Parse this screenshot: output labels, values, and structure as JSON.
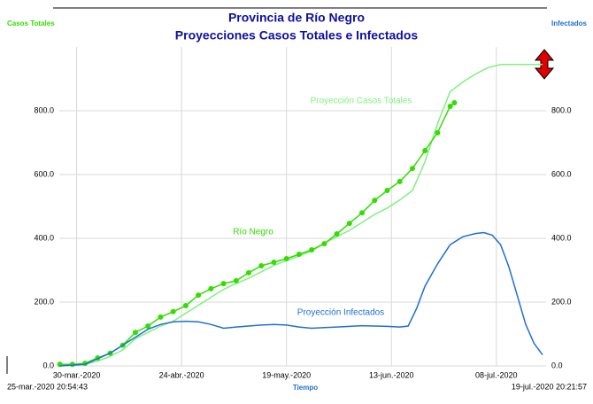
{
  "chart_data": {
    "type": "line",
    "title": "Provincia de Río Negro",
    "subtitle": "Proyecciones Casos Totales e Infectados",
    "ylabel": "Casos Totales",
    "y2label": "Infectados",
    "xlabel": "Tiempo",
    "xlim": [
      {
        "value": "2020-03-25T20:54:43",
        "label": "25-mar.-2020 20:54:43"
      },
      {
        "value": "2020-07-19T20:21:57",
        "label": "19-jul.-2020 20:21:57"
      }
    ],
    "xticks": [
      {
        "value": "2020-03-30",
        "label": "30-mar.-2020"
      },
      {
        "value": "2020-04-24",
        "label": "24-abr.-2020"
      },
      {
        "value": "2020-05-19",
        "label": "19-may.-2020"
      },
      {
        "value": "2020-06-13",
        "label": "13-jun.-2020"
      },
      {
        "value": "2020-07-08",
        "label": "08-jul.-2020"
      }
    ],
    "ylim": [
      0,
      1000
    ],
    "yticks": [
      {
        "value": 0,
        "label": "0.0"
      },
      {
        "value": 200,
        "label": "200.0"
      },
      {
        "value": 400,
        "label": "400.0"
      },
      {
        "value": 600,
        "label": "600.0"
      },
      {
        "value": 800,
        "label": "800.0"
      }
    ],
    "y2lim": [
      0,
      1000
    ],
    "y2ticks": [
      {
        "value": 0,
        "label": "0.0"
      },
      {
        "value": 200,
        "label": "200.0"
      },
      {
        "value": 400,
        "label": "400.0"
      },
      {
        "value": 600,
        "label": "600.0"
      },
      {
        "value": 800,
        "label": "800.0"
      }
    ],
    "grid": true,
    "series": [
      {
        "name": "Proyección Casos Totales",
        "color": "#80f080",
        "x": [
          "2020-03-26",
          "2020-03-29",
          "2020-04-01",
          "2020-04-04",
          "2020-04-07",
          "2020-04-10",
          "2020-04-13",
          "2020-04-16",
          "2020-04-19",
          "2020-04-22",
          "2020-04-25",
          "2020-04-28",
          "2020-05-01",
          "2020-05-04",
          "2020-05-07",
          "2020-05-10",
          "2020-05-13",
          "2020-05-16",
          "2020-05-19",
          "2020-05-22",
          "2020-05-25",
          "2020-05-28",
          "2020-05-31",
          "2020-06-03",
          "2020-06-06",
          "2020-06-09",
          "2020-06-12",
          "2020-06-15",
          "2020-06-18",
          "2020-06-21",
          "2020-06-24",
          "2020-06-27",
          "2020-06-30",
          "2020-07-03",
          "2020-07-06",
          "2020-07-09",
          "2020-07-12",
          "2020-07-15",
          "2020-07-19"
        ],
        "values": [
          0,
          2,
          5,
          15,
          30,
          50,
          85,
          105,
          125,
          140,
          165,
          190,
          215,
          240,
          258,
          275,
          295,
          315,
          330,
          345,
          360,
          385,
          405,
          425,
          450,
          475,
          495,
          520,
          550,
          640,
          760,
          860,
          890,
          915,
          935,
          945,
          945,
          945,
          945
        ]
      },
      {
        "name": "Río Negro",
        "color": "#33dd00",
        "marker": "circle",
        "x": [
          "2020-03-26",
          "2020-03-29",
          "2020-04-01",
          "2020-04-04",
          "2020-04-07",
          "2020-04-10",
          "2020-04-13",
          "2020-04-16",
          "2020-04-19",
          "2020-04-22",
          "2020-04-25",
          "2020-04-28",
          "2020-05-01",
          "2020-05-04",
          "2020-05-07",
          "2020-05-10",
          "2020-05-13",
          "2020-05-16",
          "2020-05-19",
          "2020-05-22",
          "2020-05-25",
          "2020-05-28",
          "2020-05-31",
          "2020-06-03",
          "2020-06-06",
          "2020-06-09",
          "2020-06-12",
          "2020-06-15",
          "2020-06-18",
          "2020-06-21",
          "2020-06-24",
          "2020-06-27",
          "2020-06-28"
        ],
        "values": [
          5,
          5,
          8,
          25,
          40,
          65,
          105,
          125,
          153,
          170,
          189,
          222,
          242,
          258,
          267,
          292,
          314,
          325,
          336,
          350,
          364,
          383,
          414,
          447,
          480,
          519,
          550,
          578,
          619,
          675,
          731,
          814,
          825
        ]
      },
      {
        "name": "Proyección Infectados",
        "color": "#1f6fd4",
        "axis": "y2",
        "x": [
          "2020-03-26",
          "2020-04-01",
          "2020-04-07",
          "2020-04-13",
          "2020-04-16",
          "2020-04-19",
          "2020-04-22",
          "2020-04-25",
          "2020-04-28",
          "2020-05-01",
          "2020-05-04",
          "2020-05-07",
          "2020-05-10",
          "2020-05-13",
          "2020-05-16",
          "2020-05-19",
          "2020-05-22",
          "2020-05-25",
          "2020-05-28",
          "2020-05-31",
          "2020-06-03",
          "2020-06-06",
          "2020-06-09",
          "2020-06-12",
          "2020-06-15",
          "2020-06-17",
          "2020-06-19",
          "2020-06-21",
          "2020-06-24",
          "2020-06-27",
          "2020-06-30",
          "2020-07-03",
          "2020-07-05",
          "2020-07-07",
          "2020-07-09",
          "2020-07-11",
          "2020-07-13",
          "2020-07-15",
          "2020-07-17",
          "2020-07-19"
        ],
        "values": [
          0,
          5,
          40,
          90,
          115,
          130,
          138,
          140,
          138,
          130,
          118,
          122,
          125,
          128,
          130,
          128,
          122,
          118,
          120,
          122,
          124,
          126,
          125,
          124,
          122,
          125,
          180,
          250,
          320,
          380,
          405,
          415,
          418,
          410,
          380,
          310,
          220,
          130,
          70,
          35
        ]
      }
    ]
  }
}
